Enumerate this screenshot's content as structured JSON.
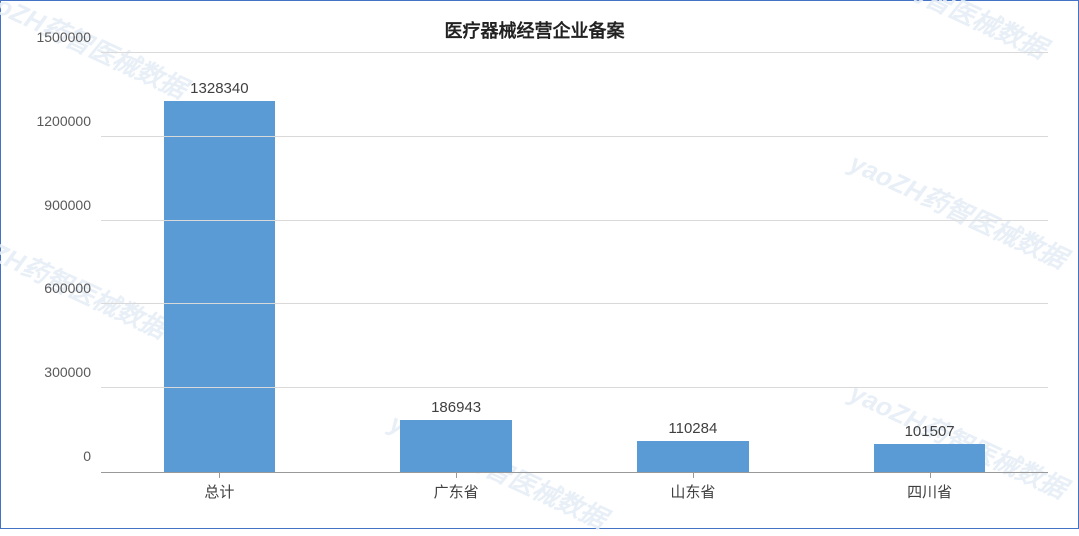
{
  "chart": {
    "type": "bar",
    "title": "医疗器械经营企业备案",
    "title_fontsize": 18,
    "title_color": "#222222",
    "background_color": "#ffffff",
    "border_color": "#4472c4",
    "categories": [
      "总计",
      "广东省",
      "山东省",
      "四川省"
    ],
    "values": [
      1328340,
      186943,
      110284,
      101507
    ],
    "value_labels": [
      "1328340",
      "186943",
      "110284",
      "101507"
    ],
    "bar_color": "#5b9bd5",
    "bar_width_ratio": 0.47,
    "ylim": [
      0,
      1500000
    ],
    "yticks": [
      0,
      300000,
      600000,
      900000,
      1200000,
      1500000
    ],
    "ytick_labels": [
      "0",
      "300000",
      "600000",
      "900000",
      "1200000",
      "1500000"
    ],
    "grid_color": "#d9d9d9",
    "axis_color": "#999999",
    "tick_label_color": "#595959",
    "tick_label_fontsize": 14,
    "value_label_fontsize": 15,
    "xlabel_fontsize": 15,
    "watermark_text": "yaoZH药智医械数据",
    "watermark_color": "#e6eef7"
  }
}
